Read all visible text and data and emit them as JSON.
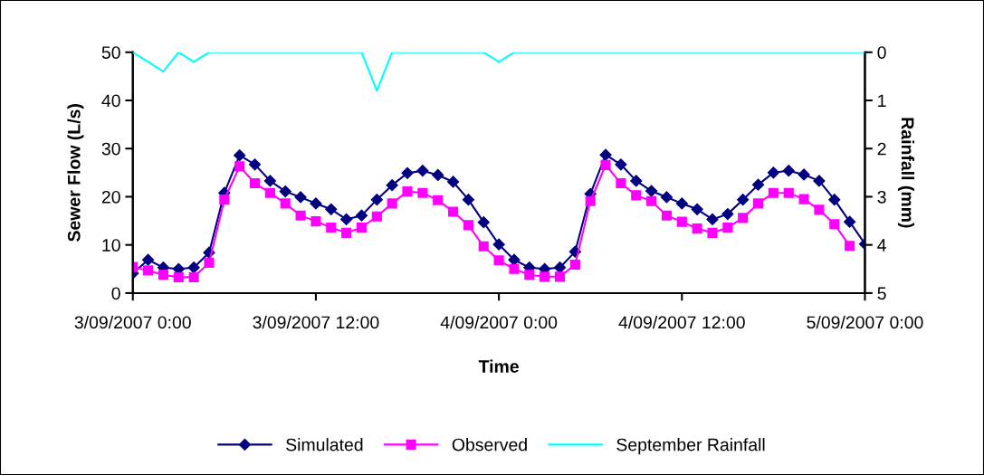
{
  "chart_data": {
    "type": "line",
    "xlabel": "Time",
    "ylabel": "Sewer Flow (L/s)",
    "y2label": "Rainfall (mm)",
    "x": [
      "2007-09-03T00:00",
      "2007-09-03T01:00",
      "2007-09-03T02:00",
      "2007-09-03T03:00",
      "2007-09-03T04:00",
      "2007-09-03T05:00",
      "2007-09-03T06:00",
      "2007-09-03T07:00",
      "2007-09-03T08:00",
      "2007-09-03T09:00",
      "2007-09-03T10:00",
      "2007-09-03T11:00",
      "2007-09-03T12:00",
      "2007-09-03T13:00",
      "2007-09-03T14:00",
      "2007-09-03T15:00",
      "2007-09-03T16:00",
      "2007-09-03T17:00",
      "2007-09-03T18:00",
      "2007-09-03T19:00",
      "2007-09-03T20:00",
      "2007-09-03T21:00",
      "2007-09-03T22:00",
      "2007-09-03T23:00",
      "2007-09-04T00:00",
      "2007-09-04T01:00",
      "2007-09-04T02:00",
      "2007-09-04T03:00",
      "2007-09-04T04:00",
      "2007-09-04T05:00",
      "2007-09-04T06:00",
      "2007-09-04T07:00",
      "2007-09-04T08:00",
      "2007-09-04T09:00",
      "2007-09-04T10:00",
      "2007-09-04T11:00",
      "2007-09-04T12:00",
      "2007-09-04T13:00",
      "2007-09-04T14:00",
      "2007-09-04T15:00",
      "2007-09-04T16:00",
      "2007-09-04T17:00",
      "2007-09-04T18:00",
      "2007-09-04T19:00",
      "2007-09-04T20:00",
      "2007-09-04T21:00",
      "2007-09-04T22:00",
      "2007-09-04T23:00",
      "2007-09-05T00:00"
    ],
    "series": [
      {
        "name": "Simulated",
        "color": "#000080",
        "marker": "diamond",
        "values": [
          4.1,
          6.9,
          5.3,
          5.0,
          5.3,
          8.4,
          20.8,
          28.6,
          26.7,
          23.3,
          21.1,
          19.9,
          18.6,
          17.4,
          15.3,
          16.1,
          19.4,
          22.4,
          24.9,
          25.4,
          24.5,
          23.1,
          19.4,
          14.7,
          10.1,
          6.9,
          5.3,
          5.0,
          5.3,
          8.6,
          20.6,
          28.7,
          26.7,
          23.3,
          21.2,
          19.9,
          18.6,
          17.4,
          15.3,
          16.4,
          19.4,
          22.5,
          25.0,
          25.4,
          24.6,
          23.3,
          19.4,
          14.8,
          10.2
        ]
      },
      {
        "name": "Observed",
        "color": "#ff00ff",
        "marker": "square",
        "values": [
          5.4,
          4.7,
          3.8,
          3.3,
          3.3,
          6.3,
          19.4,
          26.3,
          22.8,
          20.8,
          18.6,
          16.1,
          14.9,
          13.6,
          12.5,
          13.6,
          15.9,
          18.6,
          21.1,
          20.8,
          19.3,
          16.9,
          14.1,
          9.7,
          6.8,
          5.0,
          3.8,
          3.4,
          3.4,
          5.9,
          19.1,
          26.6,
          22.8,
          20.3,
          19.1,
          16.1,
          14.8,
          13.4,
          12.5,
          13.6,
          15.6,
          18.6,
          20.8,
          20.8,
          19.5,
          17.3,
          14.3,
          9.8,
          null
        ]
      },
      {
        "name": "September Rainfall",
        "color": "#00ffff",
        "marker": "none",
        "axis": "y2",
        "values": [
          0,
          0.2,
          0.4,
          0,
          0.2,
          0,
          0,
          0,
          0,
          0,
          0,
          0,
          0,
          0,
          0,
          0,
          0.8,
          0,
          0,
          0,
          0,
          0,
          0,
          0,
          0.2,
          0,
          0,
          0,
          0,
          0,
          0,
          0,
          0,
          0,
          0,
          0,
          0,
          0,
          0,
          0,
          0,
          0,
          0,
          0,
          0,
          0,
          0,
          0,
          0
        ]
      }
    ],
    "xlim": [
      "2007-09-03T00:00",
      "2007-09-05T00:00"
    ],
    "xticks": [
      {
        "value": "2007-09-03T00:00",
        "label": "3/09/2007 0:00"
      },
      {
        "value": "2007-09-03T12:00",
        "label": "3/09/2007 12:00"
      },
      {
        "value": "2007-09-04T00:00",
        "label": "4/09/2007 0:00"
      },
      {
        "value": "2007-09-04T12:00",
        "label": "4/09/2007 12:00"
      },
      {
        "value": "2007-09-05T00:00",
        "label": "5/09/2007 0:00"
      }
    ],
    "ylim": [
      0,
      50
    ],
    "yticks": [
      0,
      10,
      20,
      30,
      40,
      50
    ],
    "y2lim": [
      5,
      0
    ],
    "y2ticks": [
      0,
      1,
      2,
      3,
      4,
      5
    ],
    "grid": false,
    "legend": "bottom"
  }
}
